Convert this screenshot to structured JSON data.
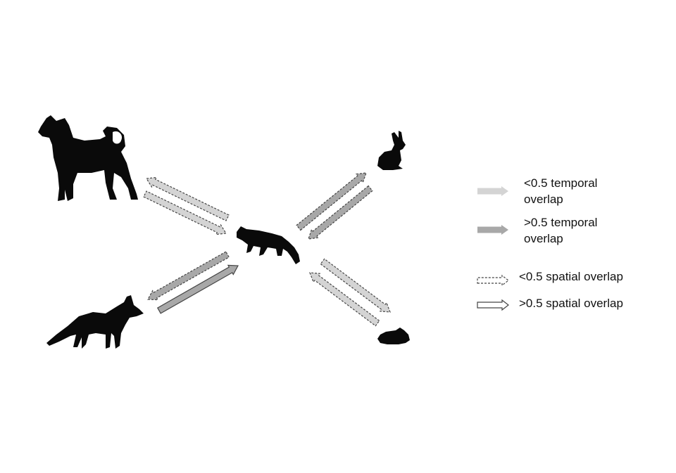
{
  "colors": {
    "silhouette": "#0a0a0a",
    "light_gray": "#d4d4d4",
    "dark_gray": "#a8a8a8",
    "outline": "#444444"
  },
  "animals": [
    {
      "id": "dog",
      "icon": "dog-icon"
    },
    {
      "id": "fox",
      "icon": "fox-icon"
    },
    {
      "id": "marten",
      "icon": "marten-icon"
    },
    {
      "id": "rabbit",
      "icon": "rabbit-icon"
    },
    {
      "id": "rodent",
      "icon": "rodent-icon"
    }
  ],
  "interactions": [
    {
      "from": "marten",
      "to": "dog",
      "temporal": "<0.5",
      "spatial": "<0.5"
    },
    {
      "from": "dog",
      "to": "marten",
      "temporal": "<0.5",
      "spatial": "<0.5"
    },
    {
      "from": "marten",
      "to": "fox",
      "temporal": ">0.5",
      "spatial": "<0.5"
    },
    {
      "from": "fox",
      "to": "marten",
      "temporal": ">0.5",
      "spatial": ">0.5"
    },
    {
      "from": "marten",
      "to": "rabbit",
      "temporal": ">0.5",
      "spatial": "<0.5"
    },
    {
      "from": "rabbit",
      "to": "marten",
      "temporal": ">0.5",
      "spatial": "<0.5"
    },
    {
      "from": "marten",
      "to": "rodent",
      "temporal": "<0.5",
      "spatial": "<0.5"
    },
    {
      "from": "rodent",
      "to": "marten",
      "temporal": "<0.5",
      "spatial": "<0.5"
    }
  ],
  "legend": {
    "temporal_low": [
      "<0.5 temporal",
      "overlap"
    ],
    "temporal_high": [
      ">0.5 temporal",
      "overlap"
    ],
    "spatial_low": "<0.5 spatial overlap",
    "spatial_high": ">0.5 spatial overlap"
  }
}
